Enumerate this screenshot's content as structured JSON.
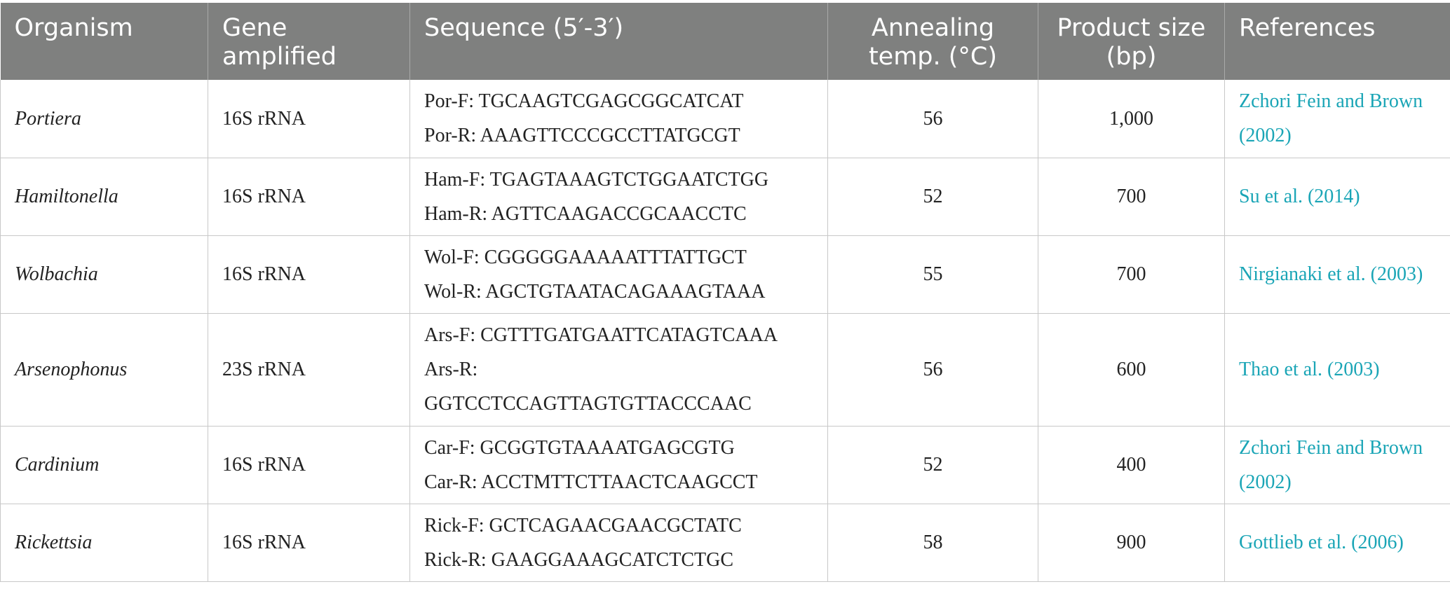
{
  "headers": {
    "organism": "Organism",
    "gene_line1": "Gene",
    "gene_line2": "amplified",
    "sequence": "Sequence (5′-3′)",
    "annealing_line1": "Annealing",
    "annealing_line2": "temp. (°C)",
    "product_line1": "Product size",
    "product_line2": "(bp)",
    "references": "References"
  },
  "rows": [
    {
      "organism": "Portiera",
      "gene": "16S rRNA",
      "seq_lines": [
        "Por-F: TGCAAGTCGAGCGGCATCAT",
        "Por-R: AAAGTTCCCGCCTTATGCGT"
      ],
      "annealing": "56",
      "product_size": "1,000",
      "ref_lines": [
        "Zchori Fein and Brown",
        "(2002)"
      ]
    },
    {
      "organism": "Hamiltonella",
      "gene": "16S rRNA",
      "seq_lines": [
        "Ham-F: TGAGTAAAGTCTGGAATCTGG",
        "Ham-R: AGTTCAAGACCGCAACCTC"
      ],
      "annealing": "52",
      "product_size": "700",
      "ref_lines": [
        "Su et al. (2014)"
      ]
    },
    {
      "organism": "Wolbachia",
      "gene": "16S rRNA",
      "seq_lines": [
        "Wol-F: CGGGGGAAAAATTTATTGCT",
        "Wol-R: AGCTGTAATACAGAAAGTAAA"
      ],
      "annealing": "55",
      "product_size": "700",
      "ref_lines": [
        "Nirgianaki et al. (2003)"
      ]
    },
    {
      "organism": "Arsenophonus",
      "gene": "23S rRNA",
      "seq_lines": [
        "Ars-F: CGTTTGATGAATTCATAGTCAAA",
        "Ars-R:",
        "GGTCCTCCAGTTAGTGTTACCCAAC"
      ],
      "annealing": "56",
      "product_size": "600",
      "ref_lines": [
        "Thao et al. (2003)"
      ]
    },
    {
      "organism": "Cardinium",
      "gene": "16S rRNA",
      "seq_lines": [
        "Car-F: GCGGTGTAAAATGAGCGTG",
        "Car-R: ACCTMTTCTTAACTCAAGCCT"
      ],
      "annealing": "52",
      "product_size": "400",
      "ref_lines": [
        "Zchori Fein and Brown",
        "(2002)"
      ]
    },
    {
      "organism": "Rickettsia",
      "gene": "16S rRNA",
      "seq_lines": [
        "Rick-F: GCTCAGAACGAACGCTATC",
        "Rick-R: GAAGGAAAGCATCTCTGC"
      ],
      "annealing": "58",
      "product_size": "900",
      "ref_lines": [
        "Gottlieb et al. (2006)"
      ]
    }
  ],
  "colors": {
    "header_bg": "#7f807f",
    "header_text": "#ffffff",
    "reference_link": "#1aa5b6",
    "grid": "#c8c8c8"
  }
}
